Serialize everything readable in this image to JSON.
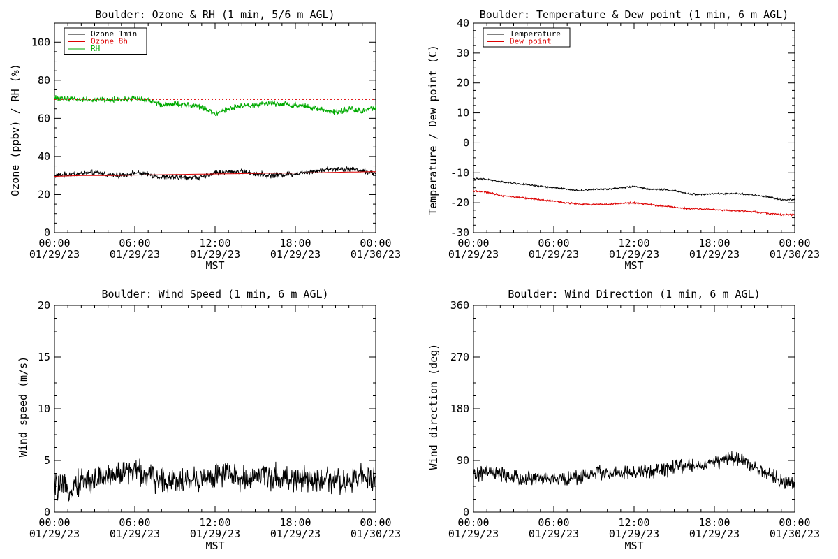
{
  "chart_data": [
    {
      "id": "ozone",
      "type": "line",
      "title": "Boulder: Ozone & RH (1 min, 5/6 m AGL)",
      "xlabel": "MST",
      "ylabel": "Ozone (ppbv) / RH (%)",
      "ylim": [
        0,
        110
      ],
      "ytick_values": [
        0,
        20,
        40,
        60,
        80,
        100
      ],
      "ytick_labels": [
        "0",
        "20",
        "40",
        "60",
        "80",
        "100"
      ],
      "xlim_hours": [
        0,
        24
      ],
      "xtick_labels": [
        [
          "00:00",
          "01/29/23"
        ],
        [
          "06:00",
          "01/29/23"
        ],
        [
          "12:00",
          "01/29/23"
        ],
        [
          "18:00",
          "01/29/23"
        ],
        [
          "00:00",
          "01/30/23"
        ]
      ],
      "legend": {
        "position": "top-left",
        "entries": [
          {
            "label": "Ozone 1min",
            "color": "#000000"
          },
          {
            "label": "Ozone 8h",
            "color": "#dd0000"
          },
          {
            "label": "RH",
            "color": "#00aa00"
          }
        ]
      },
      "series": [
        {
          "name": "Ozone 1min",
          "color": "#000000",
          "x": [
            0,
            1,
            2,
            3,
            4,
            5,
            6,
            7,
            8,
            9,
            10,
            11,
            12,
            13,
            14,
            15,
            16,
            17,
            18,
            19,
            20,
            21,
            22,
            23,
            24
          ],
          "values": [
            30,
            30.5,
            31,
            31.5,
            30.5,
            30,
            31.5,
            30.5,
            29,
            29,
            29,
            29,
            31.5,
            32,
            32,
            31,
            30,
            30.5,
            31,
            32,
            33,
            33.5,
            33.5,
            32.5,
            31
          ],
          "noise": 1.2
        },
        {
          "name": "Ozone 8h",
          "color": "#dd0000",
          "x": [
            0,
            2,
            4,
            6,
            8,
            10,
            12,
            14,
            16,
            18,
            20,
            22,
            24
          ],
          "values": [
            29.5,
            30,
            30,
            30.2,
            30.4,
            30.6,
            30.8,
            31,
            31.2,
            31.3,
            31.5,
            31.8,
            32
          ],
          "noise": 0
        },
        {
          "name": "RH",
          "color": "#00aa00",
          "x": [
            0,
            1,
            2,
            3,
            4,
            5,
            6,
            7,
            8,
            9,
            10,
            11,
            12,
            13,
            14,
            15,
            16,
            17,
            18,
            19,
            20,
            21,
            22,
            23,
            24
          ],
          "values": [
            70.5,
            70.5,
            70,
            70,
            69.5,
            70,
            70.5,
            69.5,
            67,
            67.5,
            67,
            66,
            62,
            65,
            66.5,
            67,
            68,
            67.5,
            67,
            66,
            64.5,
            63,
            65,
            64,
            65.5
          ],
          "noise": 1.3
        },
        {
          "name": "",
          "color": "#dd0000",
          "dashed": true,
          "x": [
            0,
            24
          ],
          "values": [
            70,
            70
          ],
          "noise": 0
        }
      ]
    },
    {
      "id": "temp",
      "type": "line",
      "title": "Boulder: Temperature & Dew point (1 min, 6 m AGL)",
      "xlabel": "",
      "ylabel": "Temperature / Dew point (C)",
      "ylim": [
        -30,
        40
      ],
      "ytick_values": [
        -30,
        -20,
        -10,
        0,
        10,
        20,
        30,
        40
      ],
      "ytick_labels": [
        "-30",
        "-20",
        "-10",
        "0",
        "10",
        "20",
        "30",
        "40"
      ],
      "xlim_hours": [
        0,
        24
      ],
      "xtick_labels": [
        [
          "00:00",
          "01/29/23"
        ],
        [
          "06:00",
          "01/29/23"
        ],
        [
          "12:00",
          "01/29/23"
        ],
        [
          "18:00",
          "01/29/23"
        ],
        [
          "00:00",
          "01/30/23"
        ]
      ],
      "legend": {
        "position": "top-left",
        "entries": [
          {
            "label": "Temperature",
            "color": "#000000"
          },
          {
            "label": "Dew point",
            "color": "#dd0000"
          }
        ]
      },
      "series": [
        {
          "name": "Temperature",
          "color": "#000000",
          "x": [
            0,
            1,
            2,
            3,
            4,
            5,
            6,
            7,
            8,
            9,
            10,
            11,
            12,
            13,
            14,
            15,
            16,
            17,
            18,
            19,
            20,
            21,
            22,
            23,
            24
          ],
          "values": [
            -12,
            -12.2,
            -13,
            -13.5,
            -14,
            -14.5,
            -15,
            -15.5,
            -16,
            -15.5,
            -15.5,
            -15,
            -14.5,
            -15.5,
            -15.5,
            -16,
            -17,
            -17.2,
            -17,
            -17,
            -17,
            -17.5,
            -18,
            -19,
            -19
          ],
          "noise": 0.25
        },
        {
          "name": "Dew point",
          "color": "#dd0000",
          "x": [
            0,
            1,
            2,
            3,
            4,
            5,
            6,
            7,
            8,
            9,
            10,
            11,
            12,
            13,
            14,
            15,
            16,
            17,
            18,
            19,
            20,
            21,
            22,
            23,
            24
          ],
          "values": [
            -16,
            -16.5,
            -17.5,
            -18,
            -18.5,
            -19,
            -19.5,
            -20,
            -20.5,
            -20.5,
            -20.5,
            -20.2,
            -20,
            -20.5,
            -21,
            -21.5,
            -22,
            -22,
            -22.3,
            -22.5,
            -22.8,
            -23,
            -23.5,
            -24,
            -24
          ],
          "noise": 0.25
        }
      ]
    },
    {
      "id": "wspd",
      "type": "line",
      "title": "Boulder: Wind Speed (1 min, 6 m AGL)",
      "xlabel": "MST",
      "ylabel": "Wind speed (m/s)",
      "ylim": [
        0,
        20
      ],
      "ytick_values": [
        0,
        5,
        10,
        15,
        20
      ],
      "ytick_labels": [
        "0",
        "5",
        "10",
        "15",
        "20"
      ],
      "xlim_hours": [
        0,
        24
      ],
      "xtick_labels": [
        [
          "00:00",
          "01/29/23"
        ],
        [
          "06:00",
          "01/29/23"
        ],
        [
          "12:00",
          "01/29/23"
        ],
        [
          "18:00",
          "01/29/23"
        ],
        [
          "00:00",
          "01/30/23"
        ]
      ],
      "legend": null,
      "series": [
        {
          "name": "",
          "color": "#000000",
          "x": [
            0,
            1,
            2,
            3,
            4,
            5,
            6,
            7,
            8,
            9,
            10,
            11,
            12,
            13,
            14,
            15,
            16,
            17,
            18,
            19,
            20,
            21,
            22,
            23,
            24
          ],
          "values": [
            2.5,
            2.2,
            3,
            3.2,
            3.5,
            3.8,
            4,
            3.5,
            3,
            3.2,
            3,
            3.2,
            3.5,
            3.6,
            3.2,
            3.5,
            3.5,
            3.3,
            3.2,
            3,
            3.2,
            3,
            2.8,
            3.5,
            3.5
          ],
          "noise": 1.1
        }
      ]
    },
    {
      "id": "wdir",
      "type": "line",
      "title": "Boulder: Wind Direction (1 min, 6 m AGL)",
      "xlabel": "MST",
      "ylabel": "Wind direction (deg)",
      "ylim": [
        0,
        360
      ],
      "ytick_values": [
        0,
        90,
        180,
        270,
        360
      ],
      "ytick_labels": [
        "0",
        "90",
        "180",
        "270",
        "360"
      ],
      "xlim_hours": [
        0,
        24
      ],
      "xtick_labels": [
        [
          "00:00",
          "01/29/23"
        ],
        [
          "06:00",
          "01/29/23"
        ],
        [
          "12:00",
          "01/29/23"
        ],
        [
          "18:00",
          "01/29/23"
        ],
        [
          "00:00",
          "01/30/23"
        ]
      ],
      "legend": null,
      "series": [
        {
          "name": "",
          "color": "#000000",
          "x": [
            0,
            1,
            2,
            3,
            4,
            5,
            6,
            7,
            8,
            9,
            10,
            11,
            12,
            13,
            14,
            15,
            16,
            17,
            18,
            19,
            20,
            21,
            22,
            23,
            24
          ],
          "values": [
            65,
            70,
            65,
            60,
            58,
            60,
            58,
            58,
            62,
            70,
            68,
            66,
            68,
            72,
            72,
            78,
            80,
            82,
            88,
            92,
            92,
            80,
            65,
            55,
            45
          ],
          "noise": 11
        }
      ]
    }
  ]
}
